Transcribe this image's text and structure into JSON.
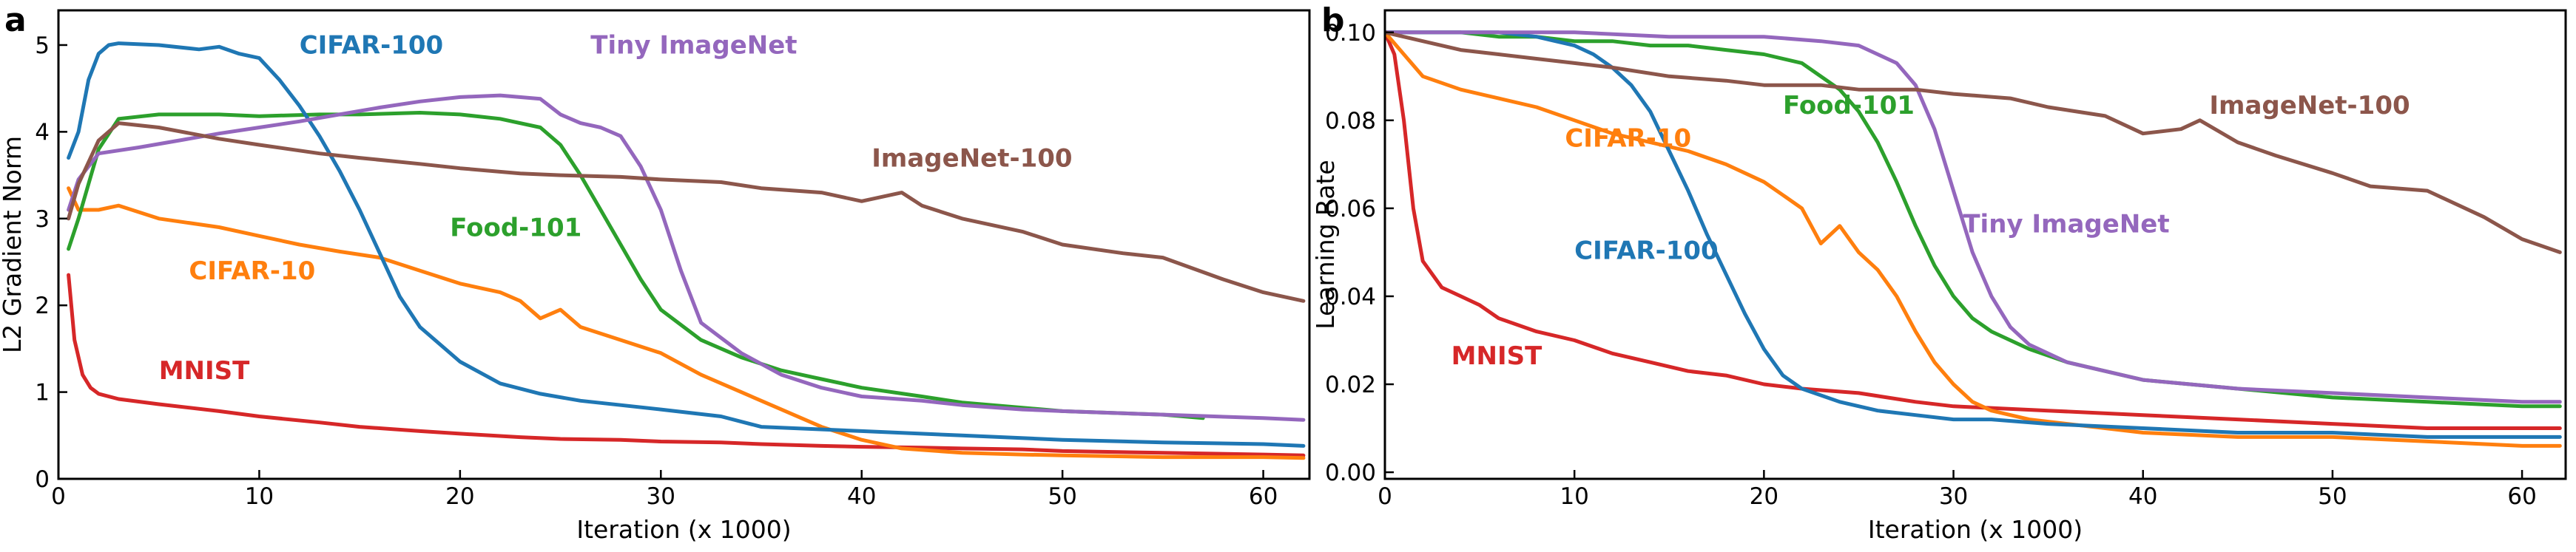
{
  "chart_data": [
    {
      "panel": "a",
      "type": "line",
      "xlabel": "Iteration (x 1000)",
      "ylabel": "L2 Gradient Norm",
      "xlim": [
        0,
        62.3
      ],
      "ylim": [
        0,
        5.4
      ],
      "xticks": [
        0,
        10,
        20,
        30,
        40,
        50,
        60
      ],
      "yticks": [
        0,
        1,
        2,
        3,
        4,
        5
      ],
      "xtick_labels": [
        "0",
        "10",
        "20",
        "30",
        "40",
        "50",
        "60"
      ],
      "ytick_labels": [
        "0",
        "1",
        "2",
        "3",
        "4",
        "5"
      ],
      "series": [
        {
          "name": "MNIST",
          "color": "#d62728",
          "x": [
            0.5,
            0.8,
            1.2,
            1.6,
            2,
            3,
            5,
            8,
            10,
            13,
            15,
            18,
            20,
            23,
            25,
            28,
            30,
            33,
            35,
            38,
            40,
            43,
            45,
            48,
            50,
            55,
            60,
            62
          ],
          "y": [
            2.35,
            1.6,
            1.2,
            1.05,
            0.98,
            0.92,
            0.86,
            0.78,
            0.72,
            0.65,
            0.6,
            0.55,
            0.52,
            0.48,
            0.46,
            0.45,
            0.43,
            0.42,
            0.4,
            0.38,
            0.37,
            0.36,
            0.35,
            0.34,
            0.32,
            0.3,
            0.28,
            0.27
          ]
        },
        {
          "name": "CIFAR-10",
          "color": "#ff7f0e",
          "x": [
            0.5,
            1,
            2,
            3,
            5,
            8,
            10,
            12,
            14,
            16,
            18,
            20,
            22,
            23,
            24,
            25,
            26,
            28,
            30,
            32,
            34,
            36,
            38,
            40,
            42,
            45,
            48,
            50,
            55,
            60,
            62
          ],
          "y": [
            3.35,
            3.1,
            3.1,
            3.15,
            3.0,
            2.9,
            2.8,
            2.7,
            2.62,
            2.55,
            2.4,
            2.25,
            2.15,
            2.05,
            1.85,
            1.95,
            1.75,
            1.6,
            1.45,
            1.2,
            1.0,
            0.8,
            0.6,
            0.45,
            0.35,
            0.3,
            0.28,
            0.27,
            0.25,
            0.25,
            0.24
          ]
        },
        {
          "name": "Food-101",
          "color": "#2ca02c",
          "x": [
            0.5,
            1,
            2,
            3,
            5,
            8,
            10,
            13,
            15,
            18,
            20,
            22,
            24,
            25,
            26,
            27,
            28,
            29,
            30,
            32,
            34,
            36,
            38,
            40,
            43,
            45,
            48,
            50,
            55,
            57
          ],
          "y": [
            2.65,
            3.0,
            3.8,
            4.15,
            4.2,
            4.2,
            4.18,
            4.2,
            4.2,
            4.22,
            4.2,
            4.15,
            4.05,
            3.85,
            3.5,
            3.1,
            2.7,
            2.3,
            1.95,
            1.6,
            1.4,
            1.25,
            1.15,
            1.05,
            0.95,
            0.88,
            0.82,
            0.78,
            0.74,
            0.7
          ]
        },
        {
          "name": "CIFAR-100",
          "color": "#1f77b4",
          "x": [
            0.5,
            1,
            1.5,
            2,
            2.5,
            3,
            5,
            7,
            8,
            9,
            10,
            11,
            12,
            13,
            14,
            15,
            16,
            17,
            18,
            20,
            22,
            24,
            26,
            28,
            30,
            33,
            35,
            40,
            45,
            50,
            55,
            60,
            62
          ],
          "y": [
            3.7,
            4.0,
            4.6,
            4.9,
            5.0,
            5.02,
            5.0,
            4.95,
            4.98,
            4.9,
            4.85,
            4.6,
            4.3,
            3.95,
            3.55,
            3.1,
            2.6,
            2.1,
            1.75,
            1.35,
            1.1,
            0.98,
            0.9,
            0.85,
            0.8,
            0.72,
            0.6,
            0.55,
            0.5,
            0.45,
            0.42,
            0.4,
            0.38
          ]
        },
        {
          "name": "Tiny ImageNet",
          "color": "#9467bd",
          "x": [
            0.5,
            1,
            2,
            4,
            6,
            8,
            10,
            12,
            14,
            16,
            18,
            20,
            22,
            24,
            25,
            26,
            27,
            28,
            29,
            30,
            31,
            32,
            34,
            36,
            38,
            40,
            43,
            45,
            48,
            50,
            55,
            60,
            62
          ],
          "y": [
            3.1,
            3.45,
            3.75,
            3.82,
            3.9,
            3.98,
            4.05,
            4.12,
            4.2,
            4.28,
            4.35,
            4.4,
            4.42,
            4.38,
            4.2,
            4.1,
            4.05,
            3.95,
            3.6,
            3.1,
            2.4,
            1.8,
            1.45,
            1.2,
            1.05,
            0.95,
            0.9,
            0.85,
            0.8,
            0.78,
            0.74,
            0.7,
            0.68
          ]
        },
        {
          "name": "ImageNet-100",
          "color": "#8c564b",
          "x": [
            0.5,
            1,
            2,
            3,
            5,
            8,
            10,
            13,
            15,
            18,
            20,
            23,
            25,
            28,
            30,
            33,
            35,
            38,
            40,
            42,
            43,
            45,
            48,
            50,
            53,
            55,
            58,
            60,
            62
          ],
          "y": [
            3.0,
            3.4,
            3.9,
            4.1,
            4.05,
            3.92,
            3.85,
            3.75,
            3.7,
            3.63,
            3.58,
            3.52,
            3.5,
            3.48,
            3.45,
            3.42,
            3.35,
            3.3,
            3.2,
            3.3,
            3.15,
            3.0,
            2.85,
            2.7,
            2.6,
            2.55,
            2.3,
            2.15,
            2.05
          ]
        }
      ],
      "annotations": [
        {
          "text": "CIFAR-100",
          "series": "CIFAR-100",
          "x": 12,
          "y": 4.9
        },
        {
          "text": "Tiny ImageNet",
          "series": "Tiny ImageNet",
          "x": 26.5,
          "y": 4.9
        },
        {
          "text": "ImageNet-100",
          "series": "ImageNet-100",
          "x": 40.5,
          "y": 3.6
        },
        {
          "text": "Food-101",
          "series": "Food-101",
          "x": 19.5,
          "y": 2.8
        },
        {
          "text": "CIFAR-10",
          "series": "CIFAR-10",
          "x": 6.5,
          "y": 2.3
        },
        {
          "text": "MNIST",
          "series": "MNIST",
          "x": 5,
          "y": 1.15
        }
      ]
    },
    {
      "panel": "b",
      "type": "line",
      "xlabel": "Iteration (x 1000)",
      "ylabel": "Learning Rate",
      "xlim": [
        0,
        62.3
      ],
      "ylim": [
        -0.0015,
        0.105
      ],
      "xticks": [
        0,
        10,
        20,
        30,
        40,
        50,
        60
      ],
      "yticks": [
        0,
        0.02,
        0.04,
        0.06,
        0.08,
        0.1
      ],
      "xtick_labels": [
        "0",
        "10",
        "20",
        "30",
        "40",
        "50",
        "60"
      ],
      "ytick_labels": [
        "0.00",
        "0.02",
        "0.04",
        "0.06",
        "0.08",
        "0.10"
      ],
      "series": [
        {
          "name": "MNIST",
          "color": "#d62728",
          "x": [
            0,
            0.5,
            1,
            1.5,
            2,
            3,
            4,
            5,
            6,
            8,
            10,
            12,
            14,
            16,
            18,
            20,
            22,
            25,
            28,
            30,
            35,
            40,
            45,
            50,
            55,
            60,
            62
          ],
          "y": [
            0.1,
            0.095,
            0.08,
            0.06,
            0.048,
            0.042,
            0.04,
            0.038,
            0.035,
            0.032,
            0.03,
            0.027,
            0.025,
            0.023,
            0.022,
            0.02,
            0.019,
            0.018,
            0.016,
            0.015,
            0.014,
            0.013,
            0.012,
            0.011,
            0.01,
            0.01,
            0.01
          ]
        },
        {
          "name": "CIFAR-10",
          "color": "#ff7f0e",
          "x": [
            0,
            1,
            2,
            4,
            6,
            8,
            10,
            12,
            14,
            16,
            18,
            20,
            21,
            22,
            23,
            24,
            25,
            26,
            27,
            28,
            29,
            30,
            31,
            32,
            34,
            36,
            38,
            40,
            45,
            50,
            55,
            60,
            62
          ],
          "y": [
            0.1,
            0.095,
            0.09,
            0.087,
            0.085,
            0.083,
            0.08,
            0.077,
            0.075,
            0.073,
            0.07,
            0.066,
            0.063,
            0.06,
            0.052,
            0.056,
            0.05,
            0.046,
            0.04,
            0.032,
            0.025,
            0.02,
            0.016,
            0.014,
            0.012,
            0.011,
            0.01,
            0.009,
            0.008,
            0.008,
            0.007,
            0.006,
            0.006
          ]
        },
        {
          "name": "Food-101",
          "color": "#2ca02c",
          "x": [
            0,
            2,
            4,
            6,
            8,
            10,
            12,
            14,
            16,
            18,
            20,
            22,
            23,
            24,
            25,
            26,
            27,
            28,
            29,
            30,
            31,
            32,
            34,
            36,
            38,
            40,
            45,
            50,
            55,
            60,
            62
          ],
          "y": [
            0.1,
            0.1,
            0.1,
            0.099,
            0.099,
            0.098,
            0.098,
            0.097,
            0.097,
            0.096,
            0.095,
            0.093,
            0.09,
            0.087,
            0.082,
            0.075,
            0.066,
            0.056,
            0.047,
            0.04,
            0.035,
            0.032,
            0.028,
            0.025,
            0.023,
            0.021,
            0.019,
            0.017,
            0.016,
            0.015,
            0.015
          ]
        },
        {
          "name": "CIFAR-100",
          "color": "#1f77b4",
          "x": [
            0,
            2,
            4,
            6,
            8,
            9,
            10,
            11,
            12,
            13,
            14,
            15,
            16,
            17,
            18,
            19,
            20,
            21,
            22,
            24,
            26,
            28,
            30,
            32,
            35,
            40,
            45,
            50,
            55,
            60,
            62
          ],
          "y": [
            0.1,
            0.1,
            0.1,
            0.1,
            0.099,
            0.098,
            0.097,
            0.095,
            0.092,
            0.088,
            0.082,
            0.073,
            0.064,
            0.054,
            0.045,
            0.036,
            0.028,
            0.022,
            0.019,
            0.016,
            0.014,
            0.013,
            0.012,
            0.012,
            0.011,
            0.01,
            0.009,
            0.009,
            0.008,
            0.008,
            0.008
          ]
        },
        {
          "name": "Tiny ImageNet",
          "color": "#9467bd",
          "x": [
            0,
            5,
            10,
            15,
            20,
            23,
            25,
            26,
            27,
            28,
            29,
            30,
            31,
            32,
            33,
            34,
            36,
            38,
            40,
            45,
            50,
            55,
            60,
            62
          ],
          "y": [
            0.1,
            0.1,
            0.1,
            0.099,
            0.099,
            0.098,
            0.097,
            0.095,
            0.093,
            0.088,
            0.078,
            0.064,
            0.05,
            0.04,
            0.033,
            0.029,
            0.025,
            0.023,
            0.021,
            0.019,
            0.018,
            0.017,
            0.016,
            0.016
          ]
        },
        {
          "name": "ImageNet-100",
          "color": "#8c564b",
          "x": [
            0,
            2,
            4,
            6,
            8,
            10,
            12,
            15,
            18,
            20,
            23,
            25,
            28,
            30,
            33,
            35,
            38,
            40,
            42,
            43,
            45,
            47,
            50,
            52,
            55,
            58,
            60,
            62
          ],
          "y": [
            0.1,
            0.098,
            0.096,
            0.095,
            0.094,
            0.093,
            0.092,
            0.09,
            0.089,
            0.088,
            0.088,
            0.087,
            0.087,
            0.086,
            0.085,
            0.083,
            0.081,
            0.077,
            0.078,
            0.08,
            0.075,
            0.072,
            0.068,
            0.065,
            0.064,
            0.058,
            0.053,
            0.05
          ]
        }
      ],
      "annotations": [
        {
          "text": "Food-101",
          "series": "Food-101",
          "x": 21,
          "y": 0.0815
        },
        {
          "text": "ImageNet-100",
          "series": "ImageNet-100",
          "x": 43.5,
          "y": 0.0815
        },
        {
          "text": "CIFAR-10",
          "series": "CIFAR-10",
          "x": 9.5,
          "y": 0.074
        },
        {
          "text": "Tiny ImageNet",
          "series": "Tiny ImageNet",
          "x": 30.5,
          "y": 0.0545
        },
        {
          "text": "CIFAR-100",
          "series": "CIFAR-100",
          "x": 10,
          "y": 0.0485
        },
        {
          "text": "MNIST",
          "series": "MNIST",
          "x": 3.5,
          "y": 0.0245
        }
      ]
    }
  ]
}
